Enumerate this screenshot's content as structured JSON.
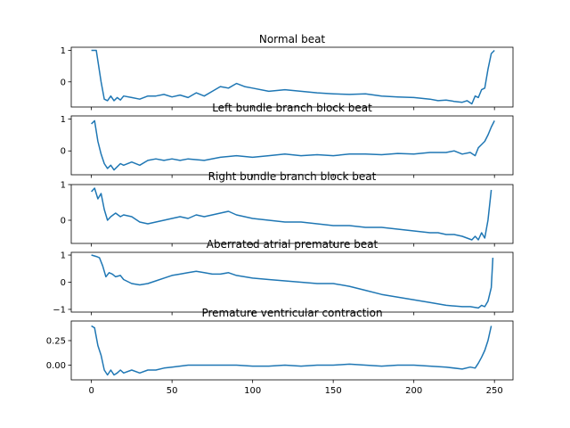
{
  "chart_data": [
    {
      "type": "line",
      "title": "Normal beat",
      "xlim": [
        -12.5,
        261.5
      ],
      "ylim": [
        -0.8,
        1.1
      ],
      "yticks": [
        {
          "v": 1,
          "label": "1"
        },
        {
          "v": 0,
          "label": "0"
        }
      ],
      "xticks": [],
      "series": [
        {
          "name": "",
          "x": [
            0,
            3,
            6,
            8,
            10,
            12,
            14,
            16,
            18,
            20,
            25,
            30,
            35,
            40,
            45,
            50,
            55,
            60,
            65,
            70,
            75,
            80,
            85,
            90,
            95,
            100,
            110,
            120,
            130,
            140,
            150,
            160,
            170,
            180,
            190,
            200,
            210,
            215,
            220,
            225,
            230,
            233,
            236,
            238,
            240,
            242,
            244,
            246,
            248,
            250
          ],
          "y": [
            1.0,
            1.0,
            0.0,
            -0.55,
            -0.6,
            -0.45,
            -0.6,
            -0.5,
            -0.58,
            -0.45,
            -0.5,
            -0.55,
            -0.45,
            -0.45,
            -0.4,
            -0.48,
            -0.42,
            -0.5,
            -0.35,
            -0.45,
            -0.3,
            -0.15,
            -0.2,
            -0.05,
            -0.15,
            -0.2,
            -0.3,
            -0.25,
            -0.3,
            -0.35,
            -0.38,
            -0.4,
            -0.38,
            -0.45,
            -0.48,
            -0.5,
            -0.55,
            -0.6,
            -0.58,
            -0.62,
            -0.65,
            -0.6,
            -0.7,
            -0.45,
            -0.5,
            -0.25,
            -0.2,
            0.4,
            0.9,
            1.0
          ]
        }
      ]
    },
    {
      "type": "line",
      "title": "Left bundle branch block beat",
      "xlim": [
        -12.5,
        261.5
      ],
      "ylim": [
        -0.75,
        1.1
      ],
      "yticks": [
        {
          "v": 1,
          "label": "1"
        },
        {
          "v": 0,
          "label": "0"
        }
      ],
      "xticks": [],
      "series": [
        {
          "name": "",
          "x": [
            0,
            2,
            4,
            6,
            8,
            10,
            12,
            14,
            16,
            18,
            20,
            25,
            30,
            35,
            40,
            45,
            50,
            55,
            60,
            70,
            80,
            90,
            100,
            110,
            120,
            130,
            140,
            150,
            160,
            170,
            180,
            190,
            200,
            210,
            220,
            225,
            230,
            235,
            238,
            240,
            242,
            244,
            246,
            248,
            250
          ],
          "y": [
            0.85,
            0.95,
            0.3,
            -0.1,
            -0.4,
            -0.55,
            -0.45,
            -0.6,
            -0.5,
            -0.4,
            -0.45,
            -0.35,
            -0.45,
            -0.3,
            -0.25,
            -0.3,
            -0.25,
            -0.3,
            -0.25,
            -0.3,
            -0.2,
            -0.15,
            -0.2,
            -0.15,
            -0.1,
            -0.15,
            -0.12,
            -0.15,
            -0.1,
            -0.1,
            -0.12,
            -0.08,
            -0.1,
            -0.05,
            -0.05,
            0.0,
            -0.1,
            -0.05,
            -0.15,
            0.1,
            0.2,
            0.3,
            0.5,
            0.75,
            0.95
          ]
        }
      ]
    },
    {
      "type": "line",
      "title": "Right bundle branch block beat",
      "xlim": [
        -12.5,
        261.5
      ],
      "ylim": [
        -0.65,
        1.0
      ],
      "yticks": [
        {
          "v": 1,
          "label": "1"
        },
        {
          "v": 0,
          "label": "0"
        }
      ],
      "xticks": [],
      "series": [
        {
          "name": "",
          "x": [
            0,
            2,
            4,
            6,
            8,
            10,
            12,
            15,
            18,
            20,
            25,
            30,
            35,
            40,
            45,
            50,
            55,
            60,
            65,
            70,
            75,
            80,
            85,
            90,
            95,
            100,
            110,
            120,
            130,
            140,
            150,
            160,
            170,
            180,
            190,
            200,
            210,
            215,
            220,
            225,
            230,
            233,
            236,
            238,
            240,
            242,
            244,
            246,
            248
          ],
          "y": [
            0.8,
            0.9,
            0.6,
            0.75,
            0.3,
            0.0,
            0.1,
            0.2,
            0.1,
            0.15,
            0.1,
            -0.05,
            -0.1,
            -0.05,
            0.0,
            0.05,
            0.1,
            0.05,
            0.15,
            0.1,
            0.15,
            0.2,
            0.25,
            0.15,
            0.1,
            0.05,
            0.0,
            -0.05,
            -0.05,
            -0.1,
            -0.15,
            -0.15,
            -0.2,
            -0.2,
            -0.25,
            -0.3,
            -0.35,
            -0.35,
            -0.4,
            -0.4,
            -0.45,
            -0.5,
            -0.55,
            -0.45,
            -0.55,
            -0.35,
            -0.5,
            0.0,
            0.85
          ]
        }
      ]
    },
    {
      "type": "line",
      "title": "Aberrated atrial premature beat",
      "xlim": [
        -12.5,
        261.5
      ],
      "ylim": [
        -1.1,
        1.1
      ],
      "yticks": [
        {
          "v": 1,
          "label": "1"
        },
        {
          "v": 0,
          "label": "0"
        },
        {
          "v": -1,
          "label": "−1"
        }
      ],
      "xticks": [],
      "series": [
        {
          "name": "",
          "x": [
            0,
            3,
            5,
            7,
            9,
            11,
            13,
            15,
            18,
            20,
            25,
            30,
            35,
            40,
            45,
            50,
            55,
            60,
            65,
            70,
            75,
            80,
            85,
            90,
            95,
            100,
            110,
            120,
            130,
            140,
            150,
            160,
            170,
            180,
            190,
            200,
            210,
            220,
            230,
            235,
            240,
            242,
            244,
            246,
            248,
            249
          ],
          "y": [
            1.0,
            0.95,
            0.9,
            0.6,
            0.2,
            0.35,
            0.3,
            0.2,
            0.25,
            0.1,
            -0.05,
            -0.1,
            -0.05,
            0.05,
            0.15,
            0.25,
            0.3,
            0.35,
            0.4,
            0.35,
            0.3,
            0.3,
            0.35,
            0.25,
            0.2,
            0.15,
            0.1,
            0.05,
            0.0,
            -0.05,
            -0.05,
            -0.15,
            -0.3,
            -0.45,
            -0.55,
            -0.65,
            -0.75,
            -0.85,
            -0.9,
            -0.9,
            -0.95,
            -0.85,
            -0.9,
            -0.7,
            -0.2,
            0.9
          ]
        }
      ]
    },
    {
      "type": "line",
      "title": "Premature ventricular contraction",
      "xlim": [
        -12.5,
        261.5
      ],
      "ylim": [
        -0.15,
        0.45
      ],
      "yticks": [
        {
          "v": 0.25,
          "label": "0.25"
        },
        {
          "v": 0.0,
          "label": "0.00"
        }
      ],
      "xticks": [
        {
          "v": 0,
          "label": "0"
        },
        {
          "v": 50,
          "label": "50"
        },
        {
          "v": 100,
          "label": "100"
        },
        {
          "v": 150,
          "label": "150"
        },
        {
          "v": 200,
          "label": "200"
        },
        {
          "v": 250,
          "label": "250"
        }
      ],
      "xlabel": "",
      "series": [
        {
          "name": "",
          "x": [
            0,
            2,
            4,
            6,
            8,
            10,
            12,
            14,
            16,
            18,
            20,
            25,
            30,
            35,
            40,
            45,
            50,
            55,
            60,
            70,
            80,
            90,
            100,
            110,
            120,
            130,
            140,
            150,
            160,
            170,
            180,
            190,
            200,
            210,
            220,
            230,
            235,
            238,
            240,
            242,
            244,
            246,
            248
          ],
          "y": [
            0.4,
            0.38,
            0.2,
            0.1,
            -0.05,
            -0.1,
            -0.05,
            -0.1,
            -0.08,
            -0.05,
            -0.08,
            -0.05,
            -0.08,
            -0.05,
            -0.05,
            -0.03,
            -0.02,
            -0.01,
            0.0,
            0.0,
            0.0,
            0.0,
            -0.01,
            -0.01,
            0.0,
            -0.01,
            0.0,
            0.0,
            0.01,
            0.0,
            -0.01,
            0.0,
            0.0,
            -0.01,
            -0.02,
            -0.04,
            -0.02,
            -0.03,
            0.02,
            0.08,
            0.15,
            0.25,
            0.4
          ]
        }
      ]
    }
  ]
}
